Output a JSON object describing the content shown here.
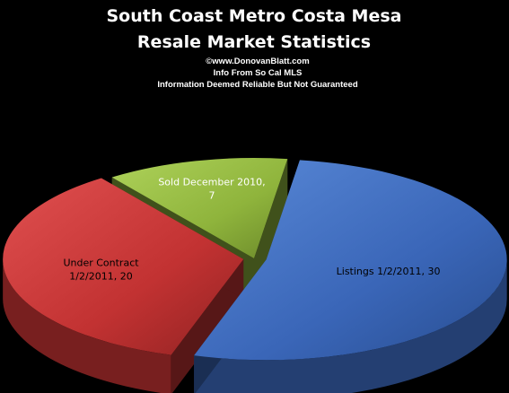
{
  "chart_data": {
    "type": "pie",
    "title_lines": [
      "South Coast Metro Costa Mesa",
      "Resale Market Statistics"
    ],
    "subtitle_lines": [
      "©www.DonovanBlatt.com",
      "Info  From So Cal MLS",
      "Information Deemed Reliable But Not Guaranteed"
    ],
    "categories": [
      "Listings 1/2/2011",
      "Under Contract 1/2/2011",
      "Sold December  2010"
    ],
    "values": [
      30,
      20,
      7
    ],
    "slices": [
      {
        "value": 30,
        "label_lines": [
          "Listings 1/2/2011, 30"
        ],
        "color": "#3a66b8",
        "label_color": "#000000"
      },
      {
        "value": 20,
        "label_lines": [
          "Under Contract",
          "1/2/2011, 20"
        ],
        "color": "#c23232",
        "label_color": "#000000"
      },
      {
        "value": 7,
        "label_lines": [
          "Sold December  2010,",
          "7"
        ],
        "color": "#8fb43c",
        "label_color": "#ffffff"
      }
    ],
    "legend": "none",
    "background_color": "#000000",
    "text_color": "#ffffff"
  }
}
